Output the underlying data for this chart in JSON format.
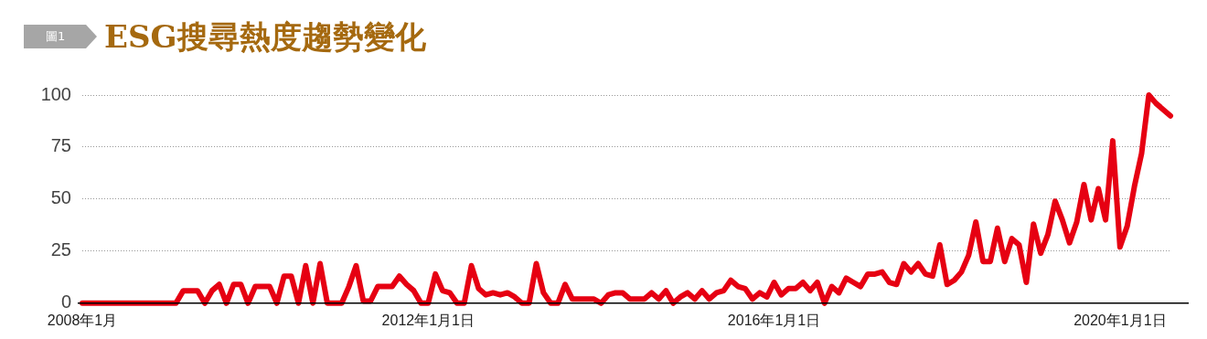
{
  "chart_data": {
    "type": "line",
    "title": "ESG搜尋熱度趨勢變化",
    "annotations": [
      "圖1"
    ],
    "categories": [
      "2008年1月",
      null,
      null,
      null,
      null,
      null,
      null,
      null,
      null,
      null,
      null,
      null,
      null,
      null,
      null,
      null,
      null,
      null,
      null,
      null,
      null,
      null,
      null,
      null,
      null,
      null,
      null,
      null,
      null,
      null,
      null,
      null,
      null,
      null,
      null,
      null,
      null,
      null,
      null,
      null,
      null,
      null,
      null,
      null,
      null,
      null,
      null,
      null,
      "2012年1月1日",
      null,
      null,
      null,
      null,
      null,
      null,
      null,
      null,
      null,
      null,
      null,
      null,
      null,
      null,
      null,
      null,
      null,
      null,
      null,
      null,
      null,
      null,
      null,
      null,
      null,
      null,
      null,
      null,
      null,
      null,
      null,
      null,
      null,
      null,
      null,
      null,
      null,
      null,
      null,
      null,
      null,
      null,
      null,
      null,
      null,
      null,
      null,
      "2016年1月1日",
      null,
      null,
      null,
      null,
      null,
      null,
      null,
      null,
      null,
      null,
      null,
      null,
      null,
      null,
      null,
      null,
      null,
      null,
      null,
      null,
      null,
      null,
      null,
      null,
      null,
      null,
      null,
      null,
      null,
      null,
      null,
      null,
      null,
      null,
      null,
      null,
      null,
      null,
      null,
      null,
      null,
      null,
      null,
      null,
      null,
      null,
      null,
      "2020年1月1日",
      null,
      null,
      null,
      null,
      null,
      null,
      null
    ],
    "series": [
      {
        "color": "#e60012",
        "values": [
          0,
          0,
          0,
          0,
          0,
          0,
          0,
          0,
          0,
          0,
          0,
          0,
          0,
          0,
          6,
          6,
          6,
          0,
          6,
          9,
          0,
          9,
          9,
          0,
          8,
          8,
          8,
          0,
          13,
          13,
          0,
          18,
          0,
          19,
          0,
          0,
          0,
          8,
          18,
          1,
          1,
          8,
          8,
          8,
          13,
          9,
          6,
          0,
          0,
          14,
          6,
          5,
          0,
          0,
          18,
          7,
          4,
          5,
          4,
          5,
          3,
          0,
          0,
          19,
          5,
          0,
          0,
          9,
          2,
          2,
          2,
          2,
          0,
          4,
          5,
          5,
          2,
          2,
          2,
          5,
          2,
          6,
          0,
          3,
          5,
          2,
          6,
          2,
          5,
          6,
          11,
          8,
          7,
          2,
          5,
          3,
          10,
          4,
          7,
          7,
          10,
          6,
          10,
          0,
          8,
          5,
          12,
          10,
          8,
          14,
          14,
          15,
          10,
          9,
          19,
          15,
          19,
          14,
          13,
          28,
          9,
          11,
          15,
          23,
          39,
          20,
          20,
          36,
          20,
          31,
          28,
          10,
          38,
          24,
          33,
          49,
          40,
          29,
          39,
          57,
          40,
          55,
          40,
          78,
          27,
          37,
          56,
          72,
          100,
          96,
          93,
          90
        ]
      }
    ],
    "ylim": [
      0,
      100
    ],
    "yticks": [
      0,
      25,
      50,
      75,
      100
    ],
    "grid": "y",
    "legend": false,
    "marker": "none",
    "line_style": "solid"
  }
}
